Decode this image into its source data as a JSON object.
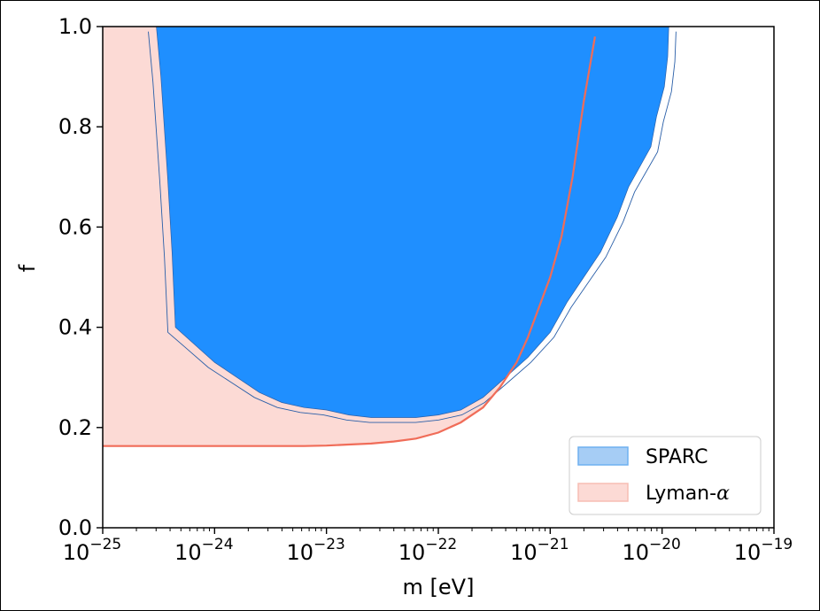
{
  "chart_data": {
    "type": "area",
    "xlabel": "m [eV]",
    "ylabel": "f",
    "xscale": "log",
    "xlim": [
      1e-25,
      1e-19
    ],
    "ylim": [
      0.0,
      1.0
    ],
    "x_tick_values": [
      1e-25,
      1e-24,
      1e-23,
      1e-22,
      1e-21,
      1e-20,
      1e-19
    ],
    "x_ticks": [
      {
        "base": "10",
        "exp": "−25"
      },
      {
        "base": "10",
        "exp": "−24"
      },
      {
        "base": "10",
        "exp": "−23"
      },
      {
        "base": "10",
        "exp": "−22"
      },
      {
        "base": "10",
        "exp": "−21"
      },
      {
        "base": "10",
        "exp": "−20"
      },
      {
        "base": "10",
        "exp": "−19"
      }
    ],
    "y_tick_values": [
      0.0,
      0.2,
      0.4,
      0.6,
      0.8,
      1.0
    ],
    "y_ticks": [
      "0.0",
      "0.2",
      "0.4",
      "0.6",
      "0.8",
      "1.0"
    ],
    "legend_position": "lower-right",
    "colors": {
      "sparc_fill": "#1f8fff",
      "sparc_edge": "#2a5fa8",
      "sparc_legend_fill": "#a6cdf5",
      "sparc_legend_edge": "#6fb0f0",
      "lyman_fill": "#fcdad5",
      "lyman_line": "#f06c58"
    },
    "series": [
      {
        "name": "SPARC",
        "kind": "excluded-region",
        "boundary": [
          {
            "log_m": -24.52,
            "f": 1.0
          },
          {
            "log_m": -24.48,
            "f": 0.9
          },
          {
            "log_m": -24.42,
            "f": 0.7
          },
          {
            "log_m": -24.38,
            "f": 0.55
          },
          {
            "log_m": -24.35,
            "f": 0.4
          },
          {
            "log_m": -24.2,
            "f": 0.37
          },
          {
            "log_m": -24.0,
            "f": 0.33
          },
          {
            "log_m": -23.8,
            "f": 0.3
          },
          {
            "log_m": -23.6,
            "f": 0.27
          },
          {
            "log_m": -23.4,
            "f": 0.25
          },
          {
            "log_m": -23.2,
            "f": 0.24
          },
          {
            "log_m": -23.0,
            "f": 0.235
          },
          {
            "log_m": -22.8,
            "f": 0.225
          },
          {
            "log_m": -22.6,
            "f": 0.22
          },
          {
            "log_m": -22.4,
            "f": 0.22
          },
          {
            "log_m": -22.2,
            "f": 0.22
          },
          {
            "log_m": -22.0,
            "f": 0.225
          },
          {
            "log_m": -21.8,
            "f": 0.235
          },
          {
            "log_m": -21.6,
            "f": 0.26
          },
          {
            "log_m": -21.4,
            "f": 0.3
          },
          {
            "log_m": -21.2,
            "f": 0.34
          },
          {
            "log_m": -21.0,
            "f": 0.39
          },
          {
            "log_m": -20.85,
            "f": 0.45
          },
          {
            "log_m": -20.7,
            "f": 0.5
          },
          {
            "log_m": -20.55,
            "f": 0.55
          },
          {
            "log_m": -20.4,
            "f": 0.62
          },
          {
            "log_m": -20.3,
            "f": 0.68
          },
          {
            "log_m": -20.2,
            "f": 0.72
          },
          {
            "log_m": -20.1,
            "f": 0.76
          },
          {
            "log_m": -20.05,
            "f": 0.82
          },
          {
            "log_m": -19.98,
            "f": 0.88
          },
          {
            "log_m": -19.95,
            "f": 0.94
          },
          {
            "log_m": -19.94,
            "f": 1.0
          }
        ]
      },
      {
        "name": "Lyman-α",
        "kind": "excluded-region",
        "boundary": [
          {
            "log_m": -25.0,
            "f": 0.163
          },
          {
            "log_m": -24.0,
            "f": 0.163
          },
          {
            "log_m": -23.2,
            "f": 0.163
          },
          {
            "log_m": -23.0,
            "f": 0.164
          },
          {
            "log_m": -22.8,
            "f": 0.166
          },
          {
            "log_m": -22.6,
            "f": 0.168
          },
          {
            "log_m": -22.4,
            "f": 0.172
          },
          {
            "log_m": -22.2,
            "f": 0.178
          },
          {
            "log_m": -22.0,
            "f": 0.19
          },
          {
            "log_m": -21.8,
            "f": 0.21
          },
          {
            "log_m": -21.6,
            "f": 0.24
          },
          {
            "log_m": -21.45,
            "f": 0.28
          },
          {
            "log_m": -21.3,
            "f": 0.33
          },
          {
            "log_m": -21.2,
            "f": 0.38
          },
          {
            "log_m": -21.1,
            "f": 0.44
          },
          {
            "log_m": -21.0,
            "f": 0.5
          },
          {
            "log_m": -20.9,
            "f": 0.58
          },
          {
            "log_m": -20.8,
            "f": 0.7
          },
          {
            "log_m": -20.7,
            "f": 0.85
          },
          {
            "log_m": -20.6,
            "f": 0.98
          }
        ]
      }
    ],
    "legend": [
      {
        "label": "SPARC",
        "key": "sparc"
      },
      {
        "label": "Lyman-",
        "math": "α",
        "key": "lyman"
      }
    ]
  }
}
